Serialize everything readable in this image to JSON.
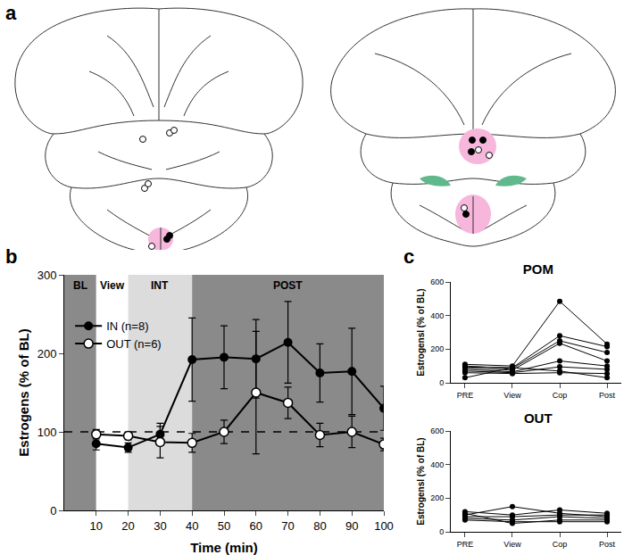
{
  "diagram": {
    "panel_label": "a"
  },
  "chart_data": [
    {
      "type": "line",
      "panel_label": "b",
      "x_label": "Time (min)",
      "y_label": "Estrogens (% of BL)",
      "x": [
        10,
        20,
        30,
        40,
        50,
        60,
        70,
        80,
        90,
        100
      ],
      "series": [
        {
          "name": "IN (n=8)",
          "color": "#000000",
          "marker": "filled",
          "values": [
            85,
            80,
            97,
            192,
            195,
            193,
            214,
            175,
            177,
            130
          ],
          "error": [
            8,
            6,
            14,
            53,
            40,
            50,
            52,
            37,
            55,
            28
          ]
        },
        {
          "name": "OUT (n=6)",
          "color": "#ffffff",
          "marker": "open",
          "values": [
            97,
            95,
            87,
            86,
            100,
            150,
            137,
            96,
            100,
            84
          ],
          "error": [
            6,
            5,
            20,
            12,
            15,
            78,
            20,
            15,
            20,
            8
          ]
        }
      ],
      "phases": [
        {
          "label": "BL",
          "start": 0,
          "end": 10,
          "color": "#8a8a8a"
        },
        {
          "label": "View",
          "start": 10,
          "end": 20,
          "color": "#ffffff"
        },
        {
          "label": "INT",
          "start": 20,
          "end": 40,
          "color": "#dcdcdc"
        },
        {
          "label": "POST",
          "start": 40,
          "end": 100,
          "color": "#8a8a8a"
        }
      ],
      "reference_y": 100,
      "xlim": [
        0,
        100
      ],
      "xticks": [
        10,
        20,
        30,
        40,
        50,
        60,
        70,
        80,
        90,
        100
      ],
      "ylim": [
        0,
        300
      ],
      "yticks": [
        0,
        100,
        200,
        300
      ],
      "legend": "top-left",
      "grid": false
    },
    {
      "type": "line",
      "panel_label": "c",
      "title": "POM",
      "y_label": "Estrogensl (% of BL)",
      "categories": [
        "PRE",
        "View",
        "Cop",
        "Post"
      ],
      "color": "#000000",
      "marker": "filled",
      "series": [
        {
          "values": [
            110,
            100,
            485,
            230
          ]
        },
        {
          "values": [
            95,
            90,
            280,
            215
          ]
        },
        {
          "values": [
            100,
            85,
            250,
            180
          ]
        },
        {
          "values": [
            90,
            75,
            235,
            130
          ]
        },
        {
          "values": [
            80,
            65,
            130,
            100
          ]
        },
        {
          "values": [
            70,
            60,
            95,
            80
          ]
        },
        {
          "values": [
            60,
            55,
            60,
            55
          ]
        },
        {
          "values": [
            30,
            90,
            70,
            30
          ]
        }
      ],
      "ylim": [
        0,
        600
      ],
      "yticks": [
        0,
        200,
        400,
        600
      ],
      "grid": false
    },
    {
      "type": "line",
      "title": "OUT",
      "y_label": "Estrogensl (% of BL)",
      "categories": [
        "PRE",
        "View",
        "Cop",
        "Post"
      ],
      "color": "#000000",
      "marker": "filled",
      "series": [
        {
          "values": [
            100,
            150,
            110,
            90
          ]
        },
        {
          "values": [
            120,
            100,
            130,
            110
          ]
        },
        {
          "values": [
            90,
            90,
            100,
            100
          ]
        },
        {
          "values": [
            80,
            70,
            90,
            80
          ]
        },
        {
          "values": [
            110,
            50,
            70,
            70
          ]
        },
        {
          "values": [
            70,
            60,
            60,
            60
          ]
        }
      ],
      "ylim": [
        0,
        600
      ],
      "yticks": [
        0,
        200,
        400,
        600
      ],
      "grid": false
    }
  ]
}
